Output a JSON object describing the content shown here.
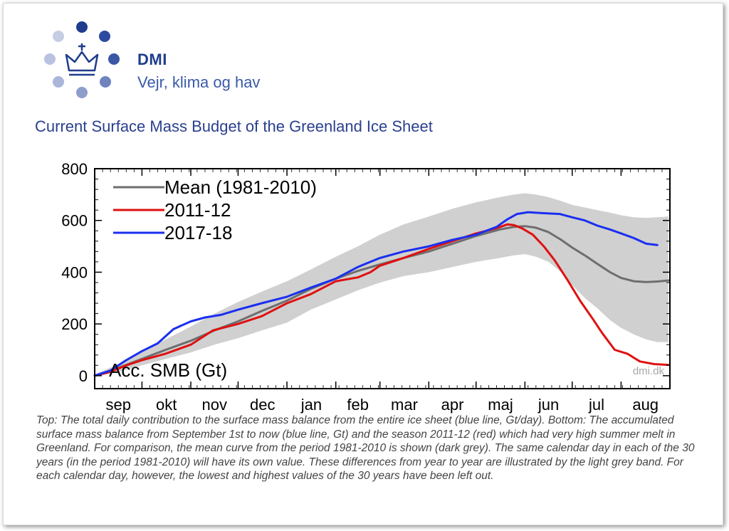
{
  "header": {
    "org_name": "DMI",
    "tagline": "Vejr, klima og hav",
    "title": "Current Surface Mass Budget of the Greenland Ice Sheet"
  },
  "colors": {
    "brand": "#1f3d8c",
    "mean": "#6e6e6e",
    "band": "#d0d0d0",
    "season_2011_12": "#e01010",
    "season_2017_18": "#1a2ff0"
  },
  "caption": "Top: The total daily contribution to the surface mass balance from the entire ice sheet (blue line, Gt/day). Bottom: The accumulated surface mass balance from September 1st to now (blue line, Gt) and the season 2011-12 (red) which had very high summer melt in Greenland. For comparison, the mean curve from the period 1981-2010 is shown (dark grey). The same calendar day in each of the 30 years (in the period 1981-2010) will have its own value. These differences from year to year are illustrated by the light grey band. For each calendar day, however, the lowest and highest values of the 30 years have been left out.",
  "chart_data": {
    "type": "line",
    "ylabel": "Acc. SMB (Gt)",
    "watermark": "dmi.dk",
    "ylim": [
      -50,
      800
    ],
    "xlim": [
      0,
      365
    ],
    "y_ticks": [
      0,
      200,
      400,
      600,
      800
    ],
    "x_unit": "days since Sep 1",
    "month_labels": [
      "sep",
      "okt",
      "nov",
      "dec",
      "jan",
      "feb",
      "mar",
      "apr",
      "maj",
      "jun",
      "jul",
      "aug"
    ],
    "month_starts": [
      0,
      30,
      61,
      91,
      122,
      153,
      181,
      212,
      242,
      273,
      303,
      334
    ],
    "legend_position": "top-left",
    "series": [
      {
        "name": "Mean (1981-2010)",
        "color": "#6e6e6e",
        "x": [
          0,
          15,
          30,
          45,
          61,
          76,
          91,
          106,
          122,
          137,
          153,
          167,
          181,
          196,
          212,
          227,
          242,
          257,
          266,
          273,
          280,
          288,
          296,
          303,
          311,
          319,
          327,
          334,
          342,
          350,
          357,
          364
        ],
        "y": [
          0,
          30,
          65,
          100,
          135,
          175,
          210,
          250,
          290,
          335,
          375,
          405,
          430,
          455,
          480,
          510,
          540,
          565,
          575,
          578,
          572,
          555,
          525,
          495,
          465,
          432,
          400,
          378,
          365,
          362,
          364,
          368
        ]
      },
      {
        "name": "2011-12",
        "color": "#e01010",
        "x": [
          0,
          10,
          20,
          30,
          45,
          61,
          75,
          91,
          106,
          122,
          137,
          153,
          167,
          175,
          181,
          196,
          212,
          227,
          242,
          255,
          262,
          266,
          271,
          278,
          285,
          292,
          300,
          308,
          316,
          322,
          330,
          338,
          346,
          355,
          364
        ],
        "y": [
          0,
          15,
          40,
          60,
          85,
          120,
          175,
          200,
          230,
          280,
          315,
          365,
          380,
          400,
          425,
          455,
          490,
          520,
          550,
          570,
          585,
          582,
          570,
          545,
          500,
          445,
          370,
          290,
          220,
          165,
          100,
          85,
          55,
          45,
          42
        ]
      },
      {
        "name": "2017-18",
        "color": "#1a2ff0",
        "x": [
          0,
          10,
          20,
          30,
          40,
          50,
          61,
          70,
          80,
          91,
          106,
          122,
          137,
          153,
          167,
          181,
          196,
          212,
          227,
          242,
          255,
          262,
          268,
          275,
          285,
          295,
          303,
          311,
          319,
          327,
          334,
          342,
          350,
          357
        ],
        "y": [
          0,
          20,
          60,
          95,
          125,
          180,
          210,
          225,
          235,
          255,
          280,
          305,
          340,
          375,
          420,
          455,
          480,
          500,
          525,
          545,
          575,
          605,
          625,
          632,
          628,
          625,
          612,
          600,
          580,
          565,
          550,
          532,
          510,
          505
        ]
      }
    ],
    "band": {
      "name": "30-year range (lowest and highest excluded)",
      "color": "#d0d0d0",
      "x": [
        0,
        15,
        30,
        45,
        61,
        76,
        91,
        106,
        122,
        137,
        153,
        167,
        181,
        196,
        212,
        227,
        242,
        257,
        266,
        273,
        280,
        288,
        296,
        303,
        311,
        319,
        327,
        334,
        342,
        350,
        357,
        364
      ],
      "upper": [
        5,
        45,
        95,
        140,
        190,
        240,
        285,
        325,
        365,
        410,
        460,
        500,
        545,
        585,
        615,
        645,
        670,
        690,
        700,
        705,
        700,
        690,
        675,
        660,
        650,
        640,
        630,
        620,
        612,
        610,
        612,
        615
      ],
      "lower": [
        -5,
        15,
        40,
        65,
        90,
        120,
        145,
        175,
        205,
        255,
        295,
        330,
        360,
        385,
        400,
        420,
        440,
        455,
        465,
        470,
        460,
        440,
        400,
        350,
        300,
        260,
        215,
        185,
        160,
        140,
        130,
        130
      ]
    }
  }
}
